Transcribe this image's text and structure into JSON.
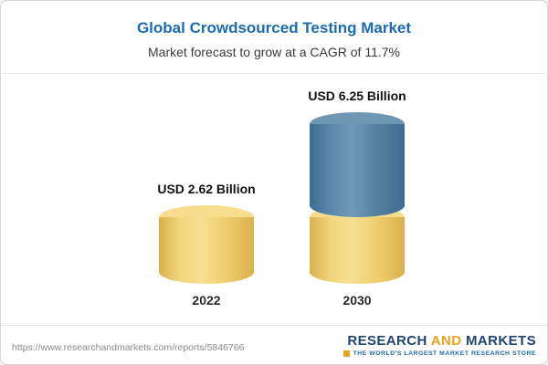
{
  "header": {
    "title": "Global Crowdsourced Testing Market",
    "subtitle": "Market forecast to grow at a CAGR of 11.7%"
  },
  "chart_data": {
    "type": "bar",
    "categories": [
      "2022",
      "2030"
    ],
    "values": [
      2.62,
      6.25
    ],
    "unit": "USD Billion",
    "bar_labels": [
      "USD 2.62 Billion",
      "USD 6.25 Billion"
    ],
    "title": "Global Crowdsourced Testing Market",
    "subtitle": "Market forecast to grow at a CAGR of 11.7%",
    "xlabel": "",
    "ylabel": "",
    "grid": false,
    "legend": false,
    "colors": {
      "base": "#eecd6d",
      "growth": "#53809f"
    },
    "notes": "2030 bar is stacked: lower segment equals 2022 value in gold, upper growth segment in blue"
  },
  "footer": {
    "url": "https://www.researchandmarkets.com/reports/5846766",
    "logo": {
      "research": "RESEARCH",
      "and": "AND",
      "markets": "MARKETS",
      "tagline": "THE WORLD'S LARGEST MARKET RESEARCH STORE"
    }
  }
}
